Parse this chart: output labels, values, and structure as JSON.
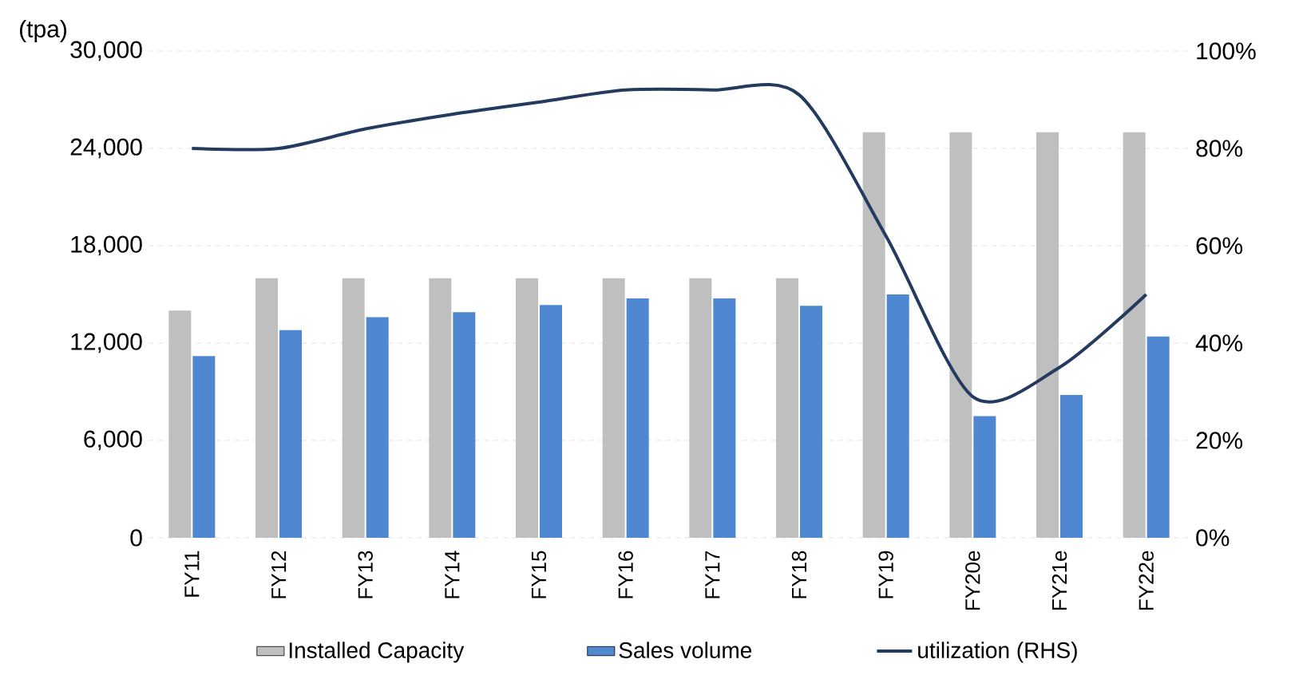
{
  "chart_data": {
    "type": "bar",
    "ylabel": "(tpa)",
    "categories": [
      "FY11",
      "FY12",
      "FY13",
      "FY14",
      "FY15",
      "FY16",
      "FY17",
      "FY18",
      "FY19",
      "FY20e",
      "FY21e",
      "FY22e"
    ],
    "series": [
      {
        "name": "Installed Capacity",
        "color": "#bfbfbf",
        "values": [
          14000,
          16000,
          16000,
          16000,
          16000,
          16000,
          16000,
          16000,
          25000,
          25000,
          25000,
          25000
        ]
      },
      {
        "name": "Sales volume",
        "color": "#4f88d0",
        "values": [
          11200,
          12800,
          13600,
          13900,
          14350,
          14750,
          14750,
          14300,
          15000,
          7500,
          8800,
          12400
        ]
      },
      {
        "name": "utilization (RHS)",
        "type": "line",
        "axis": "y2",
        "color": "#243a5e",
        "values": [
          80,
          80,
          84,
          87,
          89.5,
          92,
          92,
          91,
          62,
          29,
          35,
          50
        ]
      }
    ],
    "ylim": [
      0,
      30000
    ],
    "yticks": [
      {
        "value": 0,
        "label": "0"
      },
      {
        "value": 6000,
        "label": "6,000"
      },
      {
        "value": 12000,
        "label": "12,000"
      },
      {
        "value": 18000,
        "label": "18,000"
      },
      {
        "value": 24000,
        "label": "24,000"
      },
      {
        "value": 30000,
        "label": "30,000"
      }
    ],
    "y2lim": [
      0,
      100
    ],
    "y2ticks": [
      {
        "value": 0,
        "label": "0%"
      },
      {
        "value": 20,
        "label": "20%"
      },
      {
        "value": 40,
        "label": "40%"
      },
      {
        "value": 60,
        "label": "60%"
      },
      {
        "value": 80,
        "label": "80%"
      },
      {
        "value": 100,
        "label": "100%"
      }
    ],
    "grid": "y",
    "legend": "bottom",
    "marker": "none",
    "line_style": "solid"
  }
}
